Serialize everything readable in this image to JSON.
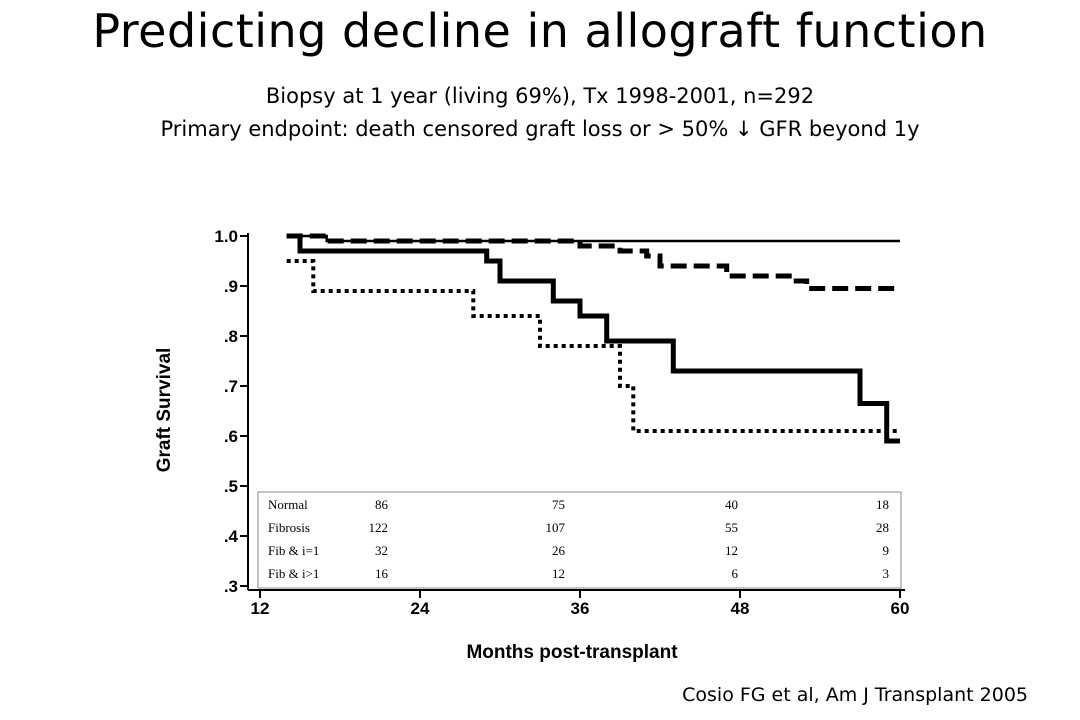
{
  "slide": {
    "title": "Predicting decline in allograft function",
    "subtitle_line1": "Biopsy at 1 year (living 69%), Tx 1998-2001, n=292",
    "subtitle_line2": "Primary endpoint: death censored graft loss or > 50% ↓ GFR beyond 1y",
    "citation": "Cosio FG et al, Am J Transplant 2005"
  },
  "chart_data": {
    "type": "line",
    "step": true,
    "xlabel": "Months post-transplant",
    "ylabel": "Graft Survival",
    "xlim": [
      12,
      60
    ],
    "ylim": [
      0.3,
      1.0
    ],
    "x_ticks": [
      "12",
      "24",
      "36",
      "48",
      "60"
    ],
    "x_tick_values": [
      12,
      24,
      36,
      48,
      60
    ],
    "y_ticks": [
      "1.0",
      ".9",
      ".8",
      ".7",
      ".6",
      ".5",
      ".4",
      ".3"
    ],
    "y_tick_values": [
      1.0,
      0.9,
      0.8,
      0.7,
      0.6,
      0.5,
      0.4,
      0.3
    ],
    "grid": false,
    "series": [
      {
        "style": "thin-solid",
        "points": [
          [
            14,
            1.0
          ],
          [
            17,
            1.0
          ],
          [
            17,
            0.99
          ],
          [
            60,
            0.99
          ]
        ]
      },
      {
        "style": "dashed",
        "points": [
          [
            14,
            1.0
          ],
          [
            17,
            1.0
          ],
          [
            17,
            0.99
          ],
          [
            36,
            0.99
          ],
          [
            36,
            0.98
          ],
          [
            39,
            0.98
          ],
          [
            39,
            0.97
          ],
          [
            41,
            0.97
          ],
          [
            41,
            0.96
          ],
          [
            42,
            0.96
          ],
          [
            42,
            0.94
          ],
          [
            47,
            0.94
          ],
          [
            47,
            0.92
          ],
          [
            52,
            0.92
          ],
          [
            52,
            0.91
          ],
          [
            53,
            0.91
          ],
          [
            53,
            0.895
          ],
          [
            60,
            0.895
          ]
        ]
      },
      {
        "style": "thick-solid",
        "points": [
          [
            14,
            1.0
          ],
          [
            15,
            1.0
          ],
          [
            15,
            0.97
          ],
          [
            29,
            0.97
          ],
          [
            29,
            0.95
          ],
          [
            30,
            0.95
          ],
          [
            30,
            0.91
          ],
          [
            34,
            0.91
          ],
          [
            34,
            0.87
          ],
          [
            36,
            0.87
          ],
          [
            36,
            0.84
          ],
          [
            38,
            0.84
          ],
          [
            38,
            0.79
          ],
          [
            43,
            0.79
          ],
          [
            43,
            0.73
          ],
          [
            57,
            0.73
          ],
          [
            57,
            0.665
          ],
          [
            59,
            0.665
          ],
          [
            59,
            0.59
          ],
          [
            60,
            0.59
          ]
        ]
      },
      {
        "style": "dotted",
        "points": [
          [
            14,
            0.95
          ],
          [
            16,
            0.95
          ],
          [
            16,
            0.89
          ],
          [
            28,
            0.89
          ],
          [
            28,
            0.84
          ],
          [
            33,
            0.84
          ],
          [
            33,
            0.78
          ],
          [
            39,
            0.78
          ],
          [
            39,
            0.7
          ],
          [
            40,
            0.7
          ],
          [
            40,
            0.61
          ],
          [
            60,
            0.61
          ]
        ]
      }
    ],
    "risk_table": {
      "rows": [
        {
          "label": "Normal",
          "values": [
            "86",
            "75",
            "40",
            "18"
          ]
        },
        {
          "label": "Fibrosis",
          "values": [
            "122",
            "107",
            "55",
            "28"
          ]
        },
        {
          "label": "Fib & i=1",
          "values": [
            "32",
            "26",
            "12",
            "9"
          ]
        },
        {
          "label": "Fib & i>1",
          "values": [
            "16",
            "12",
            "6",
            "3"
          ]
        }
      ]
    }
  }
}
